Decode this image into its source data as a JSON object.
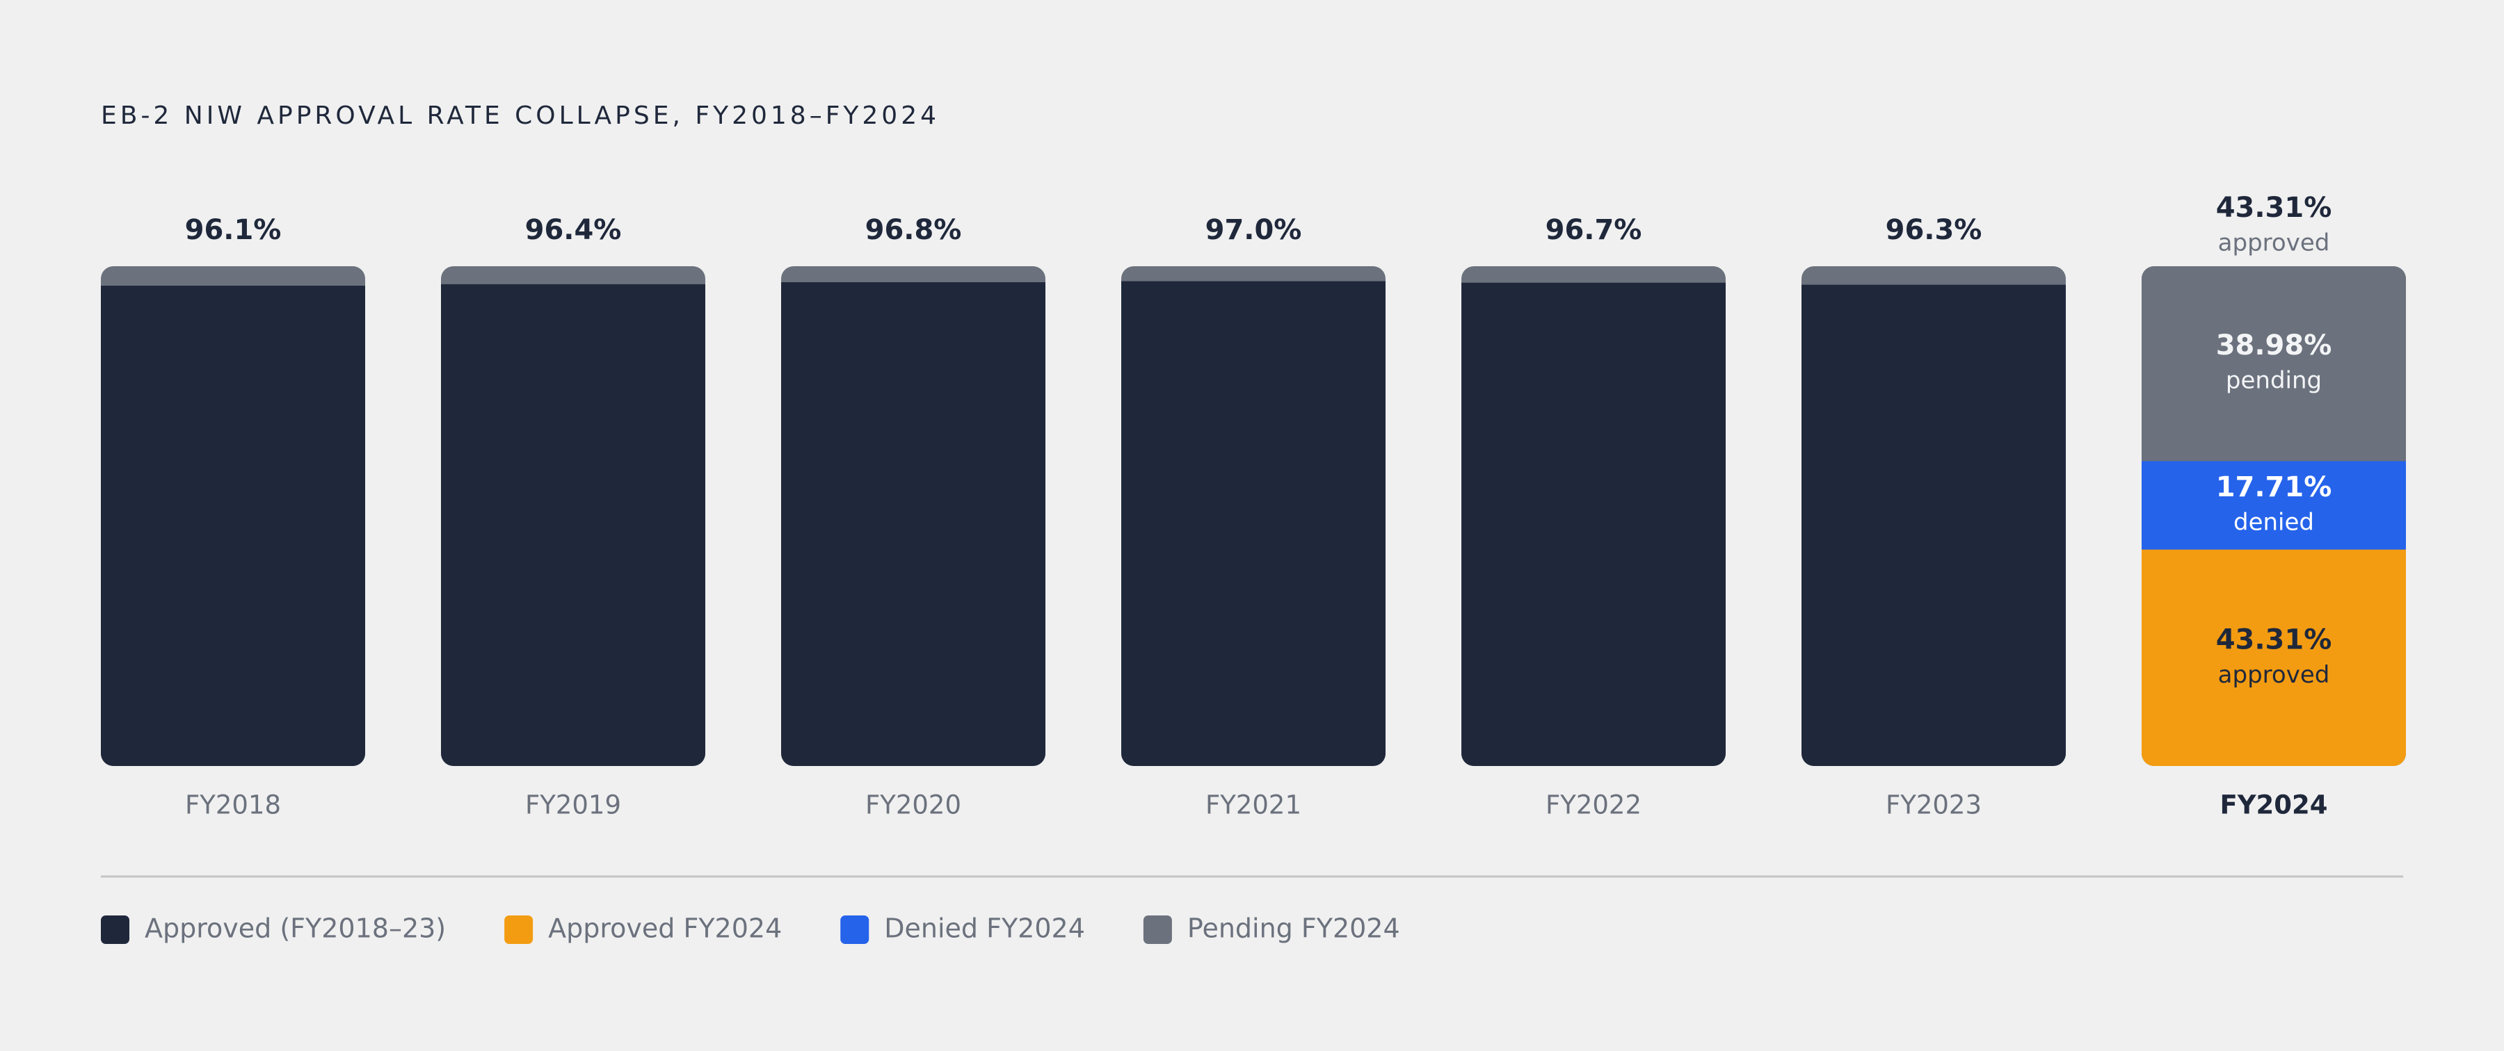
{
  "chart_data": {
    "type": "stacked_bar",
    "title": "EB-2 NIW APPROVAL RATE COLLAPSE, FY2018–FY2024",
    "categories": [
      "FY2018",
      "FY2019",
      "FY2020",
      "FY2021",
      "FY2022",
      "FY2023",
      "FY2024"
    ],
    "ylim": [
      0,
      100
    ],
    "series": [
      {
        "name": "Approved (FY2018–23)",
        "color": "#1f283b",
        "values": [
          96.1,
          96.4,
          96.8,
          97.0,
          96.7,
          96.3,
          null
        ],
        "value_labels": [
          "96.1%",
          "96.4%",
          "96.8%",
          "97.0%",
          "96.7%",
          "96.3%",
          null
        ]
      },
      {
        "name": "Approved FY2024",
        "color": "#f39c12",
        "segment_label": "approved",
        "values": [
          null,
          null,
          null,
          null,
          null,
          null,
          43.31
        ],
        "value_labels": [
          null,
          null,
          null,
          null,
          null,
          null,
          "43.31%"
        ]
      },
      {
        "name": "Denied FY2024",
        "color": "#2563eb",
        "segment_label": "denied",
        "values": [
          null,
          null,
          null,
          null,
          null,
          null,
          17.71
        ],
        "value_labels": [
          null,
          null,
          null,
          null,
          null,
          null,
          "17.71%"
        ]
      },
      {
        "name": "Pending FY2024",
        "color": "#6b717d",
        "segment_label": "pending",
        "values": [
          null,
          null,
          null,
          null,
          null,
          null,
          38.98
        ],
        "value_labels": [
          null,
          null,
          null,
          null,
          null,
          null,
          "38.98%"
        ]
      }
    ]
  }
}
